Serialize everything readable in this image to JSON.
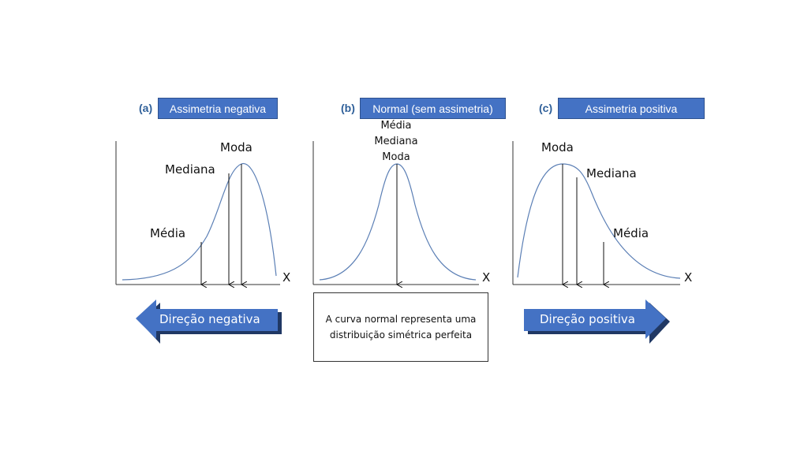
{
  "panels": {
    "a": {
      "letter": "(a)",
      "title": "Assimetria negativa",
      "moda": "Moda",
      "mediana": "Mediana",
      "media": "Média",
      "axis": "X"
    },
    "b": {
      "letter": "(b)",
      "title": "Normal (sem assimetria)",
      "media": "Média",
      "mediana": "Mediana",
      "moda": "Moda",
      "axis": "X"
    },
    "c": {
      "letter": "(c)",
      "title": "Assimetria positiva",
      "moda": "Moda",
      "mediana": "Mediana",
      "media": "Média",
      "axis": "X"
    }
  },
  "arrows": {
    "left": "Direção negativa",
    "right": "Direção positiva"
  },
  "note": {
    "line1": "A curva normal representa uma",
    "line2": "distribuição simétrica perfeita"
  },
  "colors": {
    "title_fill": "#4472c4",
    "curve": "#5b7fb5",
    "arrow_fill": "#4472c4",
    "arrow_shadow": "#203864"
  }
}
